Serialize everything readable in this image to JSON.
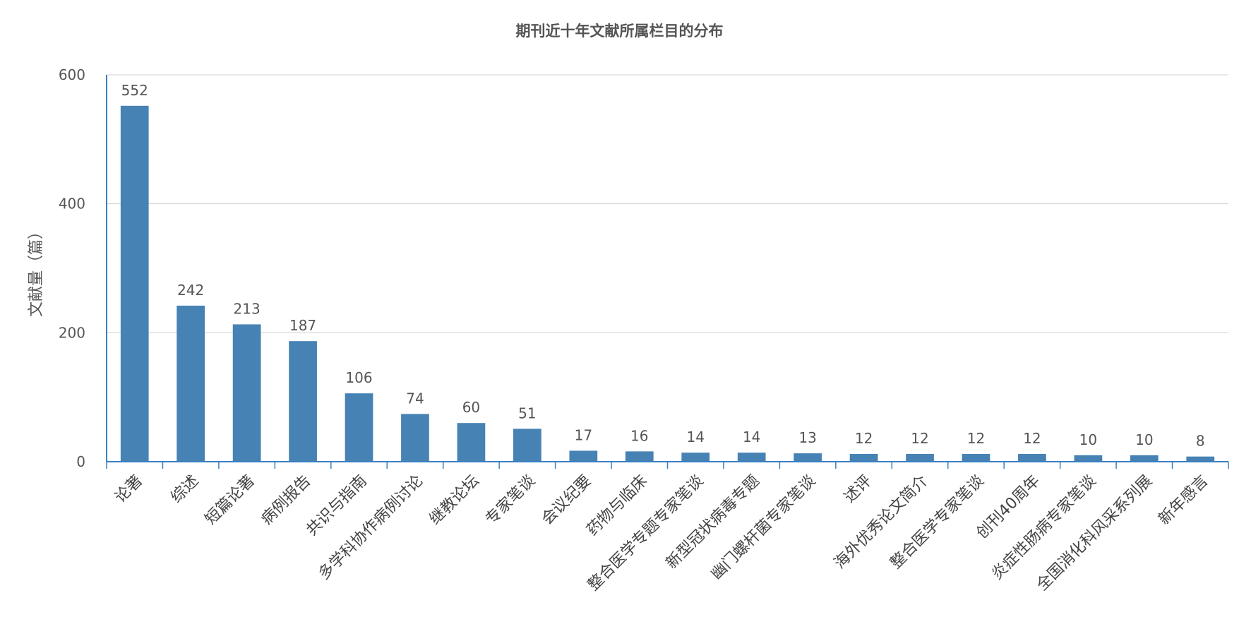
{
  "chart_data": {
    "type": "bar",
    "title": "期刊近十年文献所属栏目的分布",
    "xlabel": "",
    "ylabel": "文献量（篇）",
    "ylim": [
      0,
      600
    ],
    "yticks": [
      0,
      200,
      400,
      600
    ],
    "grid": true,
    "legend": "none",
    "colors": {
      "bar": "#4682b4",
      "axis": "#3a7fc1",
      "grid": "#d0d0d0"
    },
    "categories": [
      "论著",
      "综述",
      "短篇论著",
      "病例报告",
      "共识与指南",
      "多学科协作病例讨论",
      "继教论坛",
      "专家笔谈",
      "会议纪要",
      "药物与临床",
      "整合医学专题专家笔谈",
      "新型冠状病毒专题",
      "幽门螺杆菌专家笔谈",
      "述评",
      "海外优秀论文简介",
      "整合医学专家笔谈",
      "创刊40周年",
      "炎症性肠病专家笔谈",
      "全国消化科风采系列展",
      "新年感言"
    ],
    "values": [
      552,
      242,
      213,
      187,
      106,
      74,
      60,
      51,
      17,
      16,
      14,
      14,
      13,
      12,
      12,
      12,
      12,
      10,
      10,
      8
    ]
  }
}
